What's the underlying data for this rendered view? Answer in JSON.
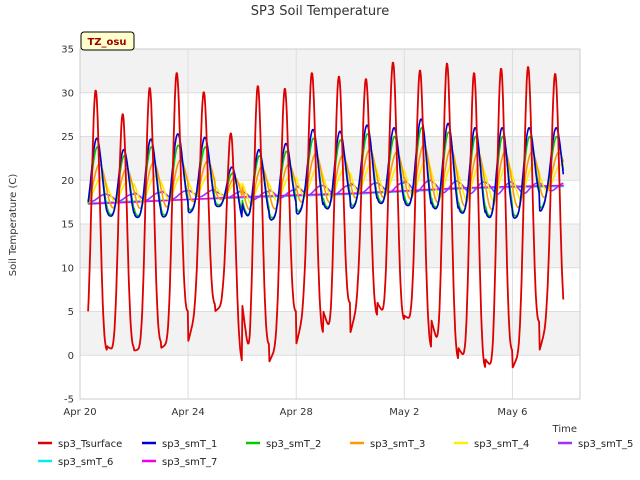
{
  "chart_data": {
    "type": "line",
    "title": "SP3 Soil Temperature",
    "xlabel": "Time",
    "ylabel": "Soil Temperature (C)",
    "ylim": [
      -5,
      35
    ],
    "yticks": [
      -5,
      0,
      5,
      10,
      15,
      20,
      25,
      30,
      35
    ],
    "xlim": [
      0,
      18.5
    ],
    "xticks": [
      {
        "x": 0,
        "label": "Apr 20"
      },
      {
        "x": 4,
        "label": "Apr 24"
      },
      {
        "x": 8,
        "label": "Apr 28"
      },
      {
        "x": 12,
        "label": "May 2"
      },
      {
        "x": 16,
        "label": "May 6"
      }
    ],
    "tz_badge": "TZ_osu",
    "grid": true,
    "legend_position": "bottom",
    "series": [
      {
        "name": "sp3_Tsurface",
        "color": "#dd0000",
        "kind": "diurnal",
        "start": 0.3,
        "end": 17.9,
        "maxes": [
          30.3,
          27.6,
          30.6,
          32.3,
          30.1,
          25.4,
          30.8,
          30.5,
          32.3,
          31.9,
          31.6,
          33.5,
          32.6,
          33.4,
          32.3,
          32.8,
          33.0,
          32.2
        ],
        "mins": [
          1.0,
          0.5,
          0.8,
          1.5,
          5.0,
          5.8,
          -0.8,
          1.2,
          5.0,
          2.5,
          6.0,
          4.5,
          4.0,
          0.8,
          -0.5,
          -1.5,
          0.5,
          3.8
        ],
        "peak": 0.58,
        "sharp": 2.2
      },
      {
        "name": "sp3_smT_1",
        "color": "#0000cc",
        "kind": "diurnal",
        "start": 0.3,
        "end": 17.9,
        "maxes": [
          24.8,
          23.5,
          24.7,
          25.3,
          24.9,
          21.5,
          23.5,
          24.2,
          25.8,
          25.6,
          26.3,
          26.0,
          27.0,
          26.5,
          26.0,
          26.0,
          26.0,
          26.0
        ],
        "mins": [
          16.0,
          15.8,
          15.7,
          16.0,
          17.0,
          17.0,
          15.3,
          15.8,
          17.0,
          16.5,
          17.5,
          17.2,
          17.0,
          16.5,
          16.0,
          15.5,
          16.0,
          18.0
        ],
        "peak": 0.62,
        "sharp": 1.4
      },
      {
        "name": "sp3_smT_2",
        "color": "#00cc00",
        "kind": "diurnal",
        "start": 0.3,
        "end": 17.9,
        "maxes": [
          23.8,
          22.8,
          23.8,
          24.0,
          23.8,
          20.8,
          22.8,
          23.3,
          24.8,
          24.6,
          25.3,
          25.0,
          26.0,
          25.5,
          25.0,
          25.0,
          25.0,
          25.0
        ],
        "mins": [
          16.2,
          16.0,
          15.9,
          16.2,
          17.2,
          17.2,
          15.5,
          16.0,
          17.2,
          16.7,
          17.7,
          17.4,
          17.2,
          16.7,
          16.2,
          15.7,
          16.2,
          18.2
        ],
        "peak": 0.64,
        "sharp": 1.3
      },
      {
        "name": "sp3_smT_3",
        "color": "#ff9900",
        "kind": "diurnal",
        "start": 0.3,
        "end": 17.9,
        "maxes": [
          21.8,
          21.3,
          22.0,
          22.3,
          22.2,
          20.3,
          21.5,
          21.8,
          23.0,
          22.8,
          23.5,
          23.2,
          24.0,
          23.6,
          23.2,
          23.2,
          23.2,
          23.2
        ],
        "mins": [
          17.0,
          16.8,
          16.8,
          17.0,
          17.8,
          17.8,
          16.5,
          16.8,
          17.8,
          17.4,
          18.2,
          18.0,
          17.8,
          17.4,
          17.0,
          16.6,
          17.0,
          18.5
        ],
        "peak": 0.72,
        "sharp": 1.0
      },
      {
        "name": "sp3_smT_4",
        "color": "#ffee00",
        "kind": "diurnal",
        "start": 0.3,
        "end": 17.9,
        "maxes": [
          20.3,
          20.0,
          20.5,
          20.8,
          20.8,
          19.8,
          20.3,
          20.5,
          21.5,
          21.3,
          22.0,
          21.8,
          22.3,
          22.0,
          21.8,
          21.8,
          21.8,
          21.8
        ],
        "mins": [
          17.6,
          17.5,
          17.5,
          17.7,
          18.2,
          18.2,
          17.4,
          17.6,
          18.2,
          18.0,
          18.6,
          18.4,
          18.3,
          18.0,
          17.8,
          17.6,
          17.8,
          18.8
        ],
        "peak": 0.8,
        "sharp": 0.8
      },
      {
        "name": "sp3_smT_5",
        "color": "#9933ff",
        "kind": "diurnal",
        "start": 0.3,
        "end": 17.9,
        "maxes": [
          18.4,
          18.4,
          18.6,
          18.8,
          18.9,
          18.7,
          18.7,
          18.9,
          19.4,
          19.4,
          19.7,
          19.7,
          20.0,
          19.9,
          19.8,
          19.8,
          19.7,
          19.7
        ],
        "mins": [
          17.6,
          17.6,
          17.7,
          17.8,
          18.1,
          18.1,
          17.8,
          17.9,
          18.3,
          18.3,
          18.6,
          18.6,
          18.7,
          18.6,
          18.5,
          18.4,
          18.4,
          18.8
        ],
        "peak": 0.95,
        "sharp": 0.8
      },
      {
        "name": "sp3_smT_6",
        "color": "#00eeee",
        "kind": "trend",
        "start": 0.3,
        "end": 17.9,
        "x": [
          0.3,
          2,
          4,
          6,
          8,
          10,
          12,
          14,
          16,
          17.9
        ],
        "y": [
          17.4,
          17.6,
          17.8,
          18.0,
          18.2,
          18.4,
          18.7,
          19.0,
          19.2,
          19.3
        ]
      },
      {
        "name": "sp3_smT_7",
        "color": "#ee00ee",
        "kind": "trend",
        "start": 0.3,
        "end": 17.9,
        "x": [
          0.3,
          2,
          4,
          6,
          8,
          10,
          12,
          14,
          16,
          17.9
        ],
        "y": [
          17.3,
          17.5,
          17.8,
          18.1,
          18.3,
          18.5,
          18.8,
          19.1,
          19.3,
          19.4
        ]
      }
    ]
  }
}
